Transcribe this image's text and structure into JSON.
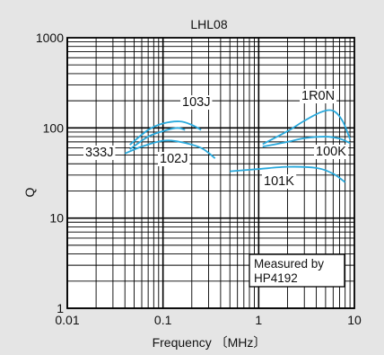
{
  "chart_data": {
    "type": "line",
    "title": "LHL08",
    "xlabel": "Frequency 〔MHz〕",
    "ylabel": "Q",
    "xscale": "log",
    "yscale": "log",
    "xlim": [
      0.01,
      10
    ],
    "ylim": [
      1,
      1000
    ],
    "x_tick_labels": [
      "0.01",
      "0.1",
      "1",
      "10"
    ],
    "y_tick_labels": [
      "1",
      "10",
      "100",
      "1000"
    ],
    "grid": true,
    "annotation": "Measured by\nHP4192",
    "colors": {
      "curve": "#29a9dc",
      "grid": "#000000",
      "background": "#e5e5e5",
      "plot": "#ffffff"
    },
    "series": [
      {
        "name": "103J",
        "x": [
          0.045,
          0.07,
          0.1,
          0.15,
          0.2,
          0.25
        ],
        "y": [
          65,
          95,
          112,
          118,
          108,
          95
        ]
      },
      {
        "name": "333J",
        "x": [
          0.045,
          0.07,
          0.1,
          0.14,
          0.17
        ],
        "y": [
          58,
          80,
          92,
          100,
          95
        ]
      },
      {
        "name": "102J",
        "x": [
          0.04,
          0.06,
          0.1,
          0.15,
          0.25,
          0.35
        ],
        "y": [
          52,
          62,
          72,
          70,
          60,
          46
        ]
      },
      {
        "name": "1R0N",
        "x": [
          1.1,
          2,
          3,
          4.5,
          6,
          7.5,
          9
        ],
        "y": [
          66,
          92,
          120,
          150,
          155,
          120,
          75
        ]
      },
      {
        "name": "100K",
        "x": [
          0.5,
          1,
          2,
          4,
          6,
          8
        ],
        "y": [
          33,
          35,
          37,
          36,
          31,
          25
        ]
      },
      {
        "name": "101K",
        "x": [
          1.1,
          2,
          3,
          5,
          7,
          9
        ],
        "y": [
          62,
          70,
          77,
          80,
          76,
          68
        ]
      }
    ]
  }
}
